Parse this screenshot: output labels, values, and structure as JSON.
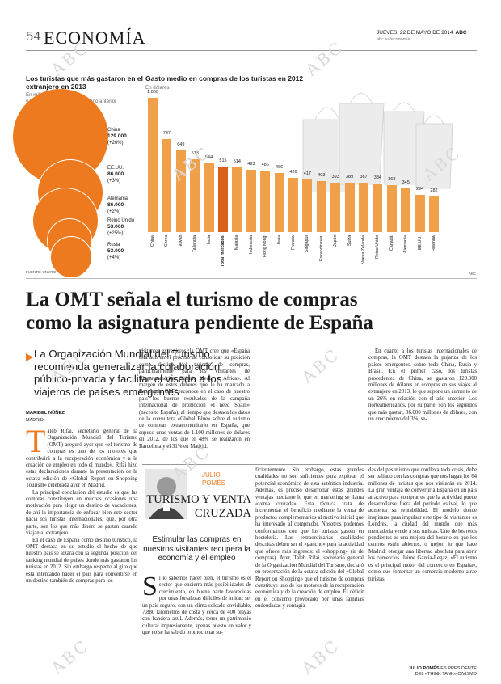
{
  "header": {
    "page": "54",
    "section": "ECONOMÍA",
    "date": "JUEVES, 22 DE MAYO DE 2014",
    "brand": "ABC",
    "site": "abc.es/economia"
  },
  "bubble_chart": {
    "title": "Los turistas que más gastaron en el extranjero en 2013",
    "subtitle1": "En millones de dólares",
    "subtitle2": "y % de variación respecto al año anterior",
    "items": [
      {
        "country": "China",
        "value": "129.000",
        "change": "(+26%)"
      },
      {
        "country": "EE.UU.",
        "value": "86.000",
        "change": "(+3%)"
      },
      {
        "country": "Alemania",
        "value": "86.000",
        "change": "(+2%)"
      },
      {
        "country": "Reino Unido",
        "value": "53.000",
        "change": "(+25%)"
      },
      {
        "country": "Rusia",
        "value": "53.000",
        "change": "(+4%)"
      }
    ],
    "source": "FUENTE: UNWTO"
  },
  "chart_data": {
    "type": "bar",
    "title": "Gasto medio en compras de los turistas en 2012",
    "ylabel": "En dólares",
    "categories": [
      "China",
      "Corea",
      "Taiwan",
      "Tailandia",
      "India",
      "Total mercados",
      "Malasia",
      "Indonesia",
      "Hong Kong",
      "Italia",
      "Francia",
      "Singapur",
      "Escandinavia",
      "Japón",
      "Suiza",
      "Nueva Zelanda",
      "Reino Unido",
      "Canadá",
      "Alemania",
      "EE.UU.",
      "Holanda"
    ],
    "values": [
      1060,
      737,
      649,
      573,
      544,
      515,
      514,
      493,
      486,
      466,
      426,
      417,
      403,
      393,
      389,
      387,
      384,
      368,
      345,
      294,
      282
    ],
    "highlight": "Total mercados",
    "ylim": [
      0,
      1100
    ],
    "credit": "ABC"
  },
  "article": {
    "headline1": "La OMT señala el turismo de compras",
    "headline2": "como la asignatura pendiente de España",
    "subhead": "La Organización Mundial del Turismo recomienda generalizar la colaboración público-privada y facilitar el visado a los viajeros de países emergentes",
    "author": "MARIBEL NÚÑEZ",
    "place": "MADRID",
    "dropcap": "T",
    "col1_first": "aleb Rifai, secretario general de la Organización Mundial del Turismo (OMT) aseguró ayer que «el turismo de compras es uno de los motores que contribuirá a la recuperación económica y a la creación de empleo en todo el mundo». Rifai hizo estas declaraciones durante la presentación de la octava edición de «Global Report on Shopping Tourism» celebrada ayer en Madrid.",
    "col1_p2": "La principal conclusión del estudio es que las compras constituyen en muchas ocasiones una motivación para elegir un destino de vacaciones, de ahí la importancia de enfocar bien este sector hacia los turistas internacionales, que, por otra parte, son los que más dinero se gastan cuando viajan al extranjero.",
    "col1_p3": "En el caso de España como destino turístico, la OMT destaca en su estudio el hecho de que nuestro país se alzara con la segunda posición del ranking mundial de países donde más gastaron los turistas en 2012. Sin embargo respecto al giro que está intentando hacer el país para convertirse en un destino también de compras para los",
    "col2_p1": "visitantes extranjeros, la OMT cree que «España está aún en el proceso de consolidar su posición como destino del turismo de compras, particularmente para los visitantes de Hispanoamérica, Oriente Medio y África». Al margen de estos deberes que le ha marcado a España, la OMT reconoce en el caso de nuestro país los buenos resultados de la campaña internacional de promoción «I need Spain» (necesito España), al tiempo que destaca los datos de la consultora «Global Blue» sobre el turismo de compras extracomunitario en España, que supuso unas ventas de 1.100 millones de dólares en 2012, de los que el 48% se realizaron en Barcelona y el 31% en Madrid.",
    "col3_p1": "En cuanto a los turistas internacionales de compras, la OMT destaca la pujanza de los países emergentes, sobre todo China, Rusia y Brasil. En el primer caso, los turistas procedentes de China, se gastaron 129.000 millones de dólares en compras en sus viajes al extranjero en 2013, lo que supone un aumento de un 26% en relación con el año anterior. Los norteamericanos, por su parte, son los segundos que más gastan, 86.000 millones de dólares, con un crecimiento del 3%, se-"
  },
  "column": {
    "author_first": "JULIO",
    "author_last": "POMÉS",
    "title": "TURISMO Y VENTA CRUZADA",
    "lead": "Estimular las compras en nuestros visitantes recupera la economía y el empleo",
    "dropcap": "S",
    "c1": "i lo sabemos hacer bien, el turismo es el sector que encierra más posibilidades de crecimiento, en buena parte favorecidas por unas fortalezas difíciles de imitar: ser un país seguro, con un clima soleado envidiable, 7.880 kilómetros de costa y cerca de 400 playas con bandera azul. Además, tener un patrimonio cultural impresionante, apenas puesto en valor y que no se ha sabido promocionar su-",
    "c2": "ficientemente. Sin embargo, estas grandes cualidades no son suficientes para explotar el potencial económico de esta auténtica industria. Además, es preciso desarrollar estas grandes ventajas mediante lo que en marketing se llama «venta cruzada». Esta técnica trata de incrementar el beneficio mediante la venta de productos complementarios al motivo inicial que ha interesado al comprador. Nosotros podemos conformarnos con que los turistas gasten en hostelería. Las extraordinarias cualidades descritas deben ser el «gancho» para la actividad que ofrece más ingresos: el «shopping» (ir de compras). Ayer, Taleb Rifai, secretario general de la Organización Mundial del Turismo, declaró en presentación de la octava edición del «Global Report on Shopping» que el turismo de compras constituye uno de los motores de la recuperación económica y de la creación de empleo. El déficit en el consumo provocado por unas familias endeudadas y contagia-",
    "c3": "das del pesimismo que conlleva toda crisis, debe ser paliado con las compras que nos hagan los 64 millones de turistas que nos visitarán en 2014. La gran ventaja de convertir a España en un país atractivo para comprar es que la actividad puede desarrollarse fuera del periodo estival, lo que aumenta su rentabilidad. El modelo donde inspirarse para impulsar este tipo de visitantes es Londres, la ciudad del mundo que más mercadería vende a sus turistas. Uno de los retos pendientes es una mejora del horario en que los centros estén abiertos, o mejor, lo que hace Madrid: otorgar una libertad absoluta para abrir los comercios. Jaime García-Legaz, «El turismo es el principal motor del comercio en España», como que fomentar un comercio moderno atrae turistas.",
    "sign_name": "JULIO POMÉS",
    "sign_role1": "ES PRESIDENTE",
    "sign_role2": "DEL «THINK TANK» CIVISMO"
  }
}
